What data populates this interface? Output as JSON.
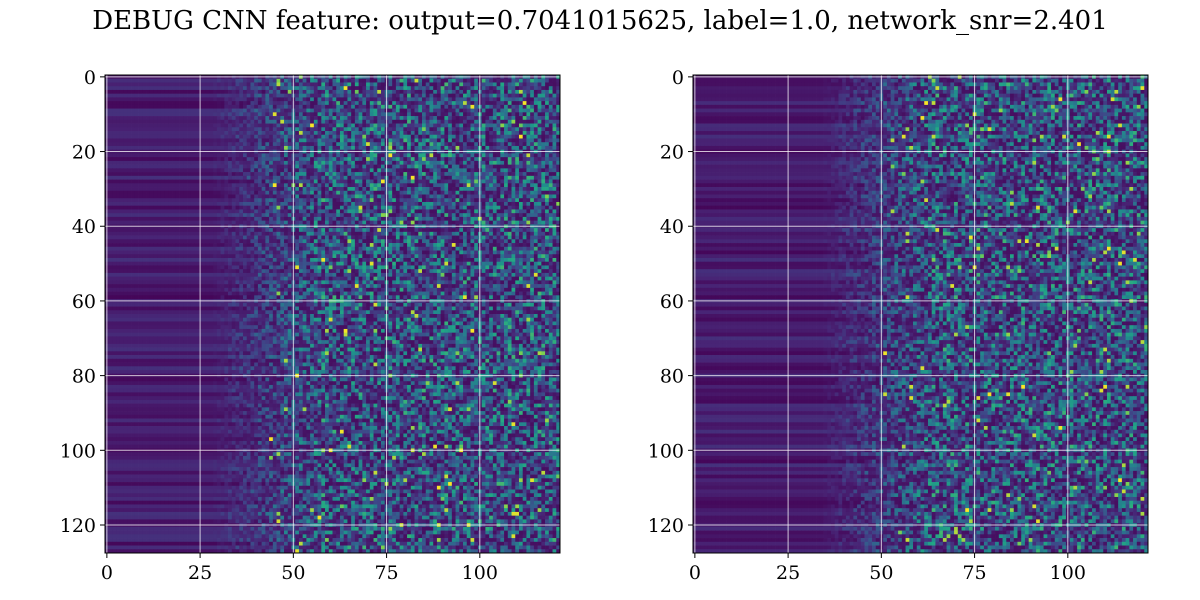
{
  "figure": {
    "title": "DEBUG CNN feature: output=0.7041015625, label=1.0, network_snr=2.401"
  },
  "chart_data": [
    {
      "type": "heatmap",
      "title": "",
      "xlabel": "",
      "ylabel": "",
      "colormap": "viridis",
      "n_rows": 128,
      "n_cols": 122,
      "xlim": [
        0,
        121
      ],
      "ylim": [
        127,
        0
      ],
      "x_ticks": [
        0,
        25,
        50,
        75,
        100
      ],
      "y_ticks": [
        0,
        20,
        40,
        60,
        80,
        100,
        120
      ],
      "grid": true,
      "pattern": "low intensity (dark purple) for columns 0-45 with horizontal banding; noisy higher intensity (teal/green/yellow) for columns 50-121"
    },
    {
      "type": "heatmap",
      "title": "",
      "xlabel": "",
      "ylabel": "",
      "colormap": "viridis",
      "n_rows": 128,
      "n_cols": 122,
      "xlim": [
        0,
        121
      ],
      "ylim": [
        127,
        0
      ],
      "x_ticks": [
        0,
        25,
        50,
        75,
        100
      ],
      "y_ticks": [
        0,
        20,
        40,
        60,
        80,
        100,
        120
      ],
      "grid": true,
      "pattern": "low intensity (dark purple) for columns 0-45 with horizontal banding; noisy higher intensity (teal/green/yellow) for columns 55-121"
    }
  ],
  "colors": {
    "colormap_low": "#440154",
    "colormap_mid": "#21918c",
    "colormap_high": "#fde725",
    "gridline": "#ffffff",
    "axis": "#000000"
  }
}
